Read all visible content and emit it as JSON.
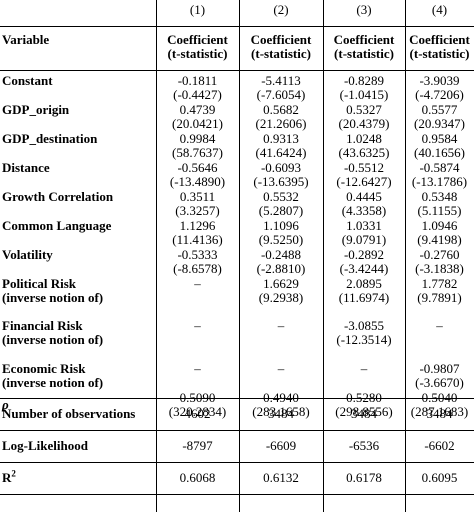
{
  "columns": [
    "(1)",
    "(2)",
    "(3)",
    "(4)"
  ],
  "header": {
    "variable_label": "Variable",
    "col_heading_line1": "Coefficient",
    "col_heading_line2": "(t-statistic)"
  },
  "rows": [
    {
      "label": "Constant",
      "coef": [
        "-0.1811",
        "-5.4113",
        "-0.8289",
        "-3.9039"
      ],
      "tstat": [
        "(-0.4427)",
        "(-7.6054)",
        "(-1.0415)",
        "(-4.7206)"
      ]
    },
    {
      "label": "GDP_origin",
      "coef": [
        "0.4739",
        "0.5682",
        "0.5327",
        "0.5577"
      ],
      "tstat": [
        "(20.0421)",
        "(21.2606)",
        "(20.4379)",
        "(20.9347)"
      ]
    },
    {
      "label": "GDP_destination",
      "coef": [
        "0.9984",
        "0.9313",
        "1.0248",
        "0.9584"
      ],
      "tstat": [
        "(58.7637)",
        "(41.6424)",
        "(43.6325)",
        "(40.1656)"
      ]
    },
    {
      "label": "Distance",
      "coef": [
        "-0.5646",
        "-0.6093",
        "-0.5512",
        "-0.5874"
      ],
      "tstat": [
        "(-13.4890)",
        "(-13.6395)",
        "(-12.6427)",
        "(-13.1786)"
      ]
    },
    {
      "label": "Growth Correlation",
      "coef": [
        "0.3511",
        "0.5532",
        "0.4445",
        "0.5348"
      ],
      "tstat": [
        "(3.3257)",
        "(5.2807)",
        "(4.3358)",
        "(5.1155)"
      ]
    },
    {
      "label": "Common Language",
      "coef": [
        "1.1296",
        "1.1096",
        "1.0331",
        "1.0946"
      ],
      "tstat": [
        "(11.4136)",
        "(9.5250)",
        "(9.0791)",
        "(9.4198)"
      ]
    },
    {
      "label": "Volatility",
      "coef": [
        "-0.5333",
        "-0.2488",
        "-0.2892",
        "-0.2760"
      ],
      "tstat": [
        "(-8.6578)",
        "(-2.8810)",
        "(-3.4244)",
        "(-3.1838)"
      ]
    },
    {
      "label": "Political Risk",
      "label2": "(inverse notion of)",
      "coef": [
        "–",
        "1.6629",
        "2.0895",
        "1.7782"
      ],
      "tstat": [
        "",
        "(9.2938)",
        "(11.6974)",
        "(9.7891)"
      ]
    },
    {
      "label": "Financial Risk",
      "label2": "(inverse notion of)",
      "coef": [
        "–",
        "–",
        "-3.0855",
        "–"
      ],
      "tstat": [
        "",
        "",
        "(-12.3514)",
        ""
      ]
    },
    {
      "label": "Economic Risk",
      "label2": "(inverse notion of)",
      "coef": [
        "–",
        "–",
        "–",
        "-0.9807"
      ],
      "tstat": [
        "",
        "",
        "",
        "(-3.6670)"
      ]
    },
    {
      "label": "ρ",
      "coef": [
        "0.5090",
        "0.4940",
        "0.5280",
        "0.5040"
      ],
      "tstat": [
        "(320.2834)",
        "(283.1658)",
        "(298.8556)",
        "(287.1683)"
      ]
    }
  ],
  "summary": [
    {
      "label": "Number of observations",
      "values": [
        "4602",
        "3484",
        "3484",
        "3484"
      ]
    },
    {
      "label": "Log-Likelihood",
      "values": [
        "-8797",
        "-6609",
        "-6536",
        "-6602"
      ]
    },
    {
      "label": "R",
      "label_sup": "2",
      "values": [
        "0.6068",
        "0.6132",
        "0.6178",
        "0.6095"
      ]
    }
  ]
}
